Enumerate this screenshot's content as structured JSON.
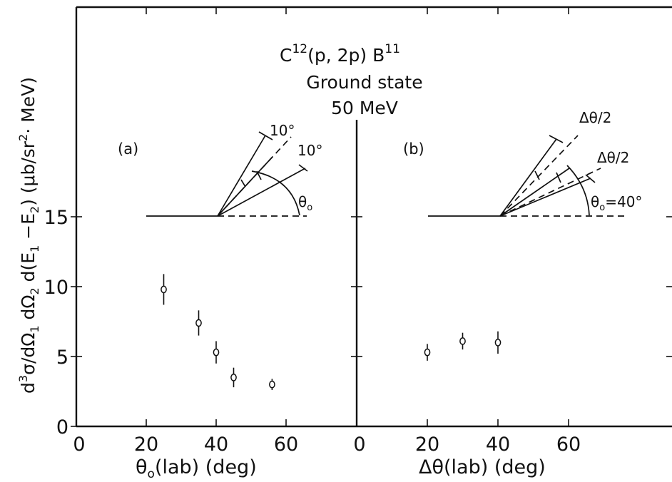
{
  "chart_data": [
    {
      "type": "scatter",
      "panel_label": "(a)",
      "xlabel": "θo(lab)   (deg)",
      "xticks": [
        0,
        20,
        40,
        60
      ],
      "xlim": [
        0,
        80
      ],
      "ylim": [
        0,
        20
      ],
      "points": [
        {
          "x": 25,
          "y": 9.8,
          "err": 1.1
        },
        {
          "x": 35,
          "y": 7.4,
          "err": 0.9
        },
        {
          "x": 40,
          "y": 5.3,
          "err": 0.8
        },
        {
          "x": 45,
          "y": 3.5,
          "err": 0.7
        },
        {
          "x": 56,
          "y": 3.0,
          "err": 0.4
        }
      ],
      "inset_labels": [
        "10°",
        "10°",
        "θo"
      ]
    },
    {
      "type": "scatter",
      "panel_label": "(b)",
      "xlabel": "Δθ(lab)   (deg)",
      "xticks": [
        0,
        20,
        40,
        60
      ],
      "xlim": [
        0,
        90
      ],
      "ylim": [
        0,
        20
      ],
      "points": [
        {
          "x": 20,
          "y": 5.3,
          "err": 0.6
        },
        {
          "x": 30,
          "y": 6.1,
          "err": 0.6
        },
        {
          "x": 40,
          "y": 6.0,
          "err": 0.8
        }
      ],
      "inset_labels": [
        "Δθ/2",
        "Δθ/2",
        "θo=40°"
      ]
    }
  ],
  "title_lines": [
    "C12(p,2p) B11",
    "Ground state",
    "50 MeV"
  ],
  "ylabel": "d3σ/dΩ1 dΩ2 d(E1 −E2)   (μb/sr2· MeV)",
  "yticks": [
    0,
    5,
    10,
    15
  ]
}
